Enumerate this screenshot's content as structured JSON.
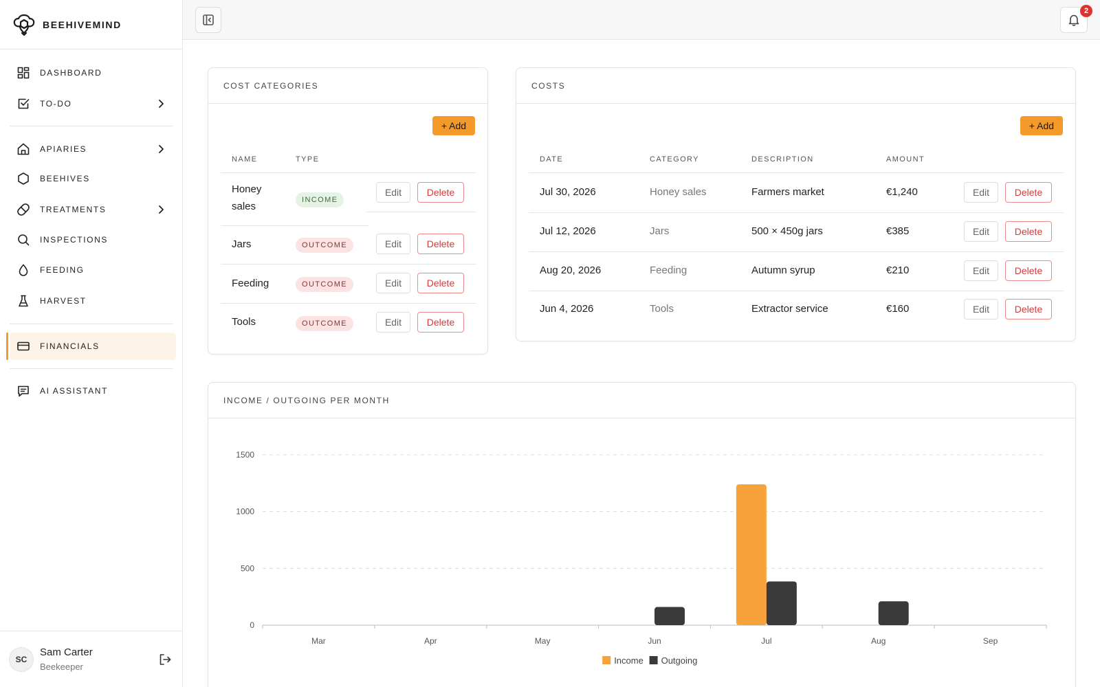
{
  "brand": {
    "name": "BEEHIVEMIND"
  },
  "nav": {
    "items": [
      {
        "id": "dashboard",
        "label": "DASHBOARD",
        "icon": "grid-icon",
        "chevron": false,
        "active": false
      },
      {
        "id": "todo",
        "label": "TO-DO",
        "icon": "checkbox-icon",
        "chevron": true,
        "active": false
      },
      {
        "id": "apiaries",
        "label": "APIARIES",
        "icon": "home-icon",
        "chevron": true,
        "active": false
      },
      {
        "id": "beehives",
        "label": "BEEHIVES",
        "icon": "hexagon-icon",
        "chevron": false,
        "active": false
      },
      {
        "id": "treatments",
        "label": "TREATMENTS",
        "icon": "pill-icon",
        "chevron": true,
        "active": false
      },
      {
        "id": "inspections",
        "label": "INSPECTIONS",
        "icon": "search-icon",
        "chevron": false,
        "active": false
      },
      {
        "id": "feeding",
        "label": "FEEDING",
        "icon": "drop-icon",
        "chevron": false,
        "active": false
      },
      {
        "id": "harvest",
        "label": "HARVEST",
        "icon": "flask-icon",
        "chevron": false,
        "active": false
      },
      {
        "id": "financials",
        "label": "FINANCIALS",
        "icon": "card-icon",
        "chevron": false,
        "active": true
      },
      {
        "id": "ai-assistant",
        "label": "AI ASSISTANT",
        "icon": "chat-icon",
        "chevron": false,
        "active": false
      }
    ]
  },
  "user": {
    "initials": "SC",
    "name": "Sam Carter",
    "role": "Beekeeper"
  },
  "topbar": {
    "notification_count": "2"
  },
  "cost_categories": {
    "title": "COST CATEGORIES",
    "add_label": "+ Add",
    "columns": [
      "NAME",
      "TYPE"
    ],
    "rows": [
      {
        "name_lines": [
          "Honey",
          "sales"
        ],
        "type": "INCOME"
      },
      {
        "name_lines": [
          "Jars"
        ],
        "type": "OUTCOME"
      },
      {
        "name_lines": [
          "Feeding"
        ],
        "type": "OUTCOME"
      },
      {
        "name_lines": [
          "Tools"
        ],
        "type": "OUTCOME"
      }
    ],
    "edit_label": "Edit",
    "delete_label": "Delete"
  },
  "costs": {
    "title": "COSTS",
    "add_label": "+ Add",
    "columns": [
      "DATE",
      "CATEGORY",
      "DESCRIPTION",
      "AMOUNT"
    ],
    "rows": [
      {
        "date": "Jul 30, 2026",
        "category": "Honey sales",
        "description": "Farmers market",
        "amount": "€1,240"
      },
      {
        "date": "Jul 12, 2026",
        "category": "Jars",
        "description": "500 × 450g jars",
        "amount": "€385"
      },
      {
        "date": "Aug 20, 2026",
        "category": "Feeding",
        "description": "Autumn syrup",
        "amount": "€210"
      },
      {
        "date": "Jun 4, 2026",
        "category": "Tools",
        "description": "Extractor service",
        "amount": "€160"
      }
    ],
    "edit_label": "Edit",
    "delete_label": "Delete"
  },
  "chart_card": {
    "title": "INCOME / OUTGOING PER MONTH"
  },
  "chart_data": {
    "type": "bar",
    "categories": [
      "Mar",
      "Apr",
      "May",
      "Jun",
      "Jul",
      "Aug",
      "Sep"
    ],
    "series": [
      {
        "name": "Income",
        "color": "#f8a23c",
        "values": [
          0,
          0,
          0,
          0,
          1240,
          0,
          0
        ]
      },
      {
        "name": "Outgoing",
        "color": "#3a3a3a",
        "values": [
          0,
          0,
          0,
          160,
          385,
          210,
          0
        ]
      }
    ],
    "yticks": [
      0,
      500,
      1000,
      1500
    ],
    "ylim": [
      0,
      1500
    ],
    "grid": true,
    "legend": "bottom-center"
  }
}
